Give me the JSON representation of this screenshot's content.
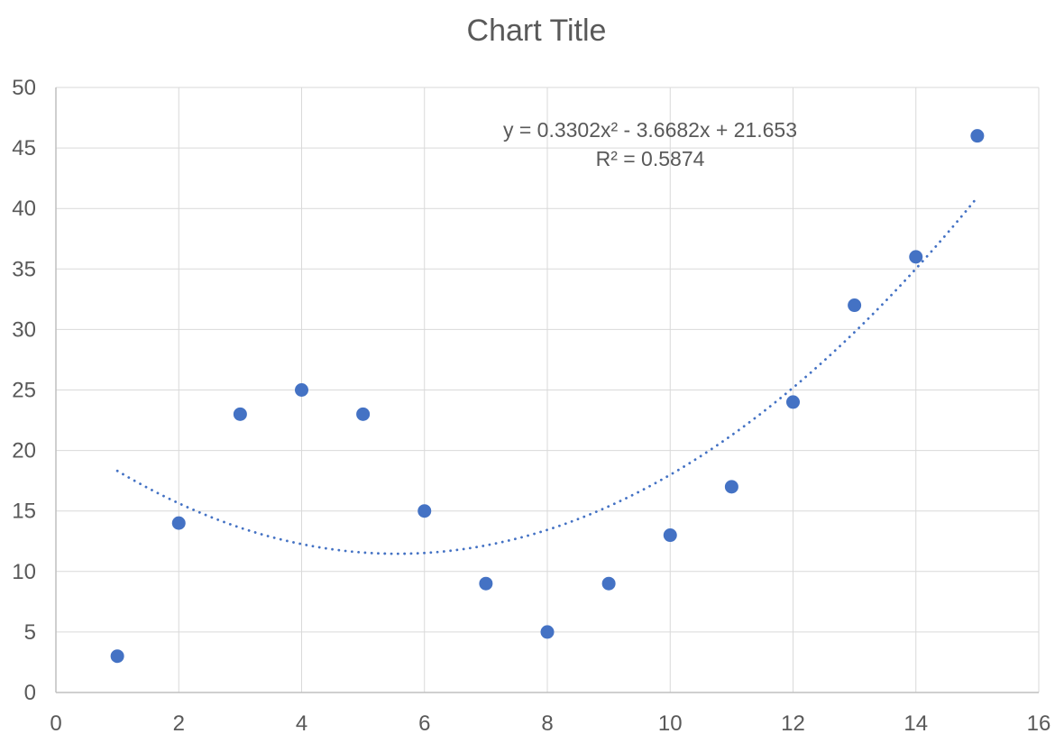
{
  "chart_data": {
    "type": "scatter",
    "title": "Chart Title",
    "x": [
      1,
      2,
      3,
      4,
      5,
      6,
      7,
      8,
      9,
      10,
      11,
      12,
      13,
      14,
      15
    ],
    "y": [
      3,
      14,
      23,
      25,
      23,
      15,
      9,
      5,
      9,
      13,
      17,
      24,
      32,
      36,
      46
    ],
    "xlim": [
      0,
      16
    ],
    "ylim": [
      0,
      50
    ],
    "x_ticks": [
      0,
      2,
      4,
      6,
      8,
      10,
      12,
      14,
      16
    ],
    "y_ticks": [
      0,
      5,
      10,
      15,
      20,
      25,
      30,
      35,
      40,
      45,
      50
    ],
    "grid": true,
    "legend": false,
    "trendline": {
      "type": "polynomial",
      "order": 2,
      "a": 0.3302,
      "b": -3.6682,
      "c": 21.653,
      "x_start": 1,
      "x_end": 15,
      "style": "dotted",
      "equation_label": "y = 0.3302x² - 3.6682x + 21.653",
      "r2_label": "R² = 0.5874"
    },
    "colors": {
      "marker": "#4472C4",
      "trendline": "#4472C4",
      "gridline": "#D9D9D9",
      "axis": "#BFBFBF",
      "text": "#595959"
    }
  }
}
